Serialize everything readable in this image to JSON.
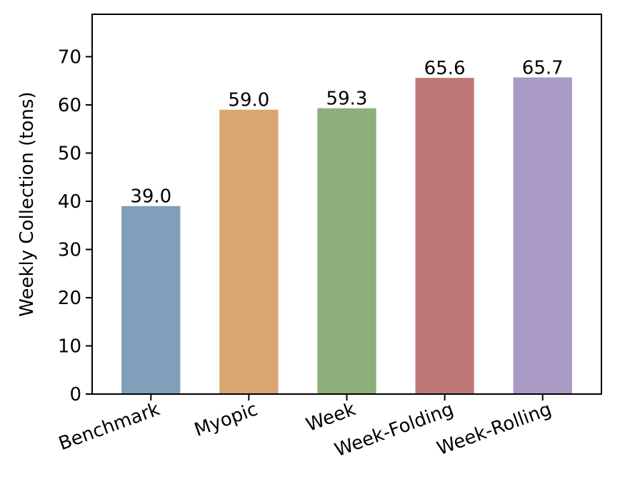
{
  "chart_data": {
    "type": "bar",
    "title": "",
    "xlabel": "",
    "ylabel": "Weekly Collection (tons)",
    "categories": [
      "Benchmark",
      "Myopic",
      "Week",
      "Week-Folding",
      "Week-Rolling"
    ],
    "values": [
      39.0,
      59.0,
      59.3,
      65.6,
      65.7
    ],
    "value_labels": [
      "39.0",
      "59.0",
      "59.3",
      "65.6",
      "65.7"
    ],
    "colors": [
      "#819eba",
      "#d9a571",
      "#8daf79",
      "#bf7877",
      "#aa9ac6"
    ],
    "ylim": [
      0,
      78.8
    ],
    "yticks": [
      0,
      10,
      20,
      30,
      40,
      50,
      60,
      70
    ],
    "grid": false,
    "legend": "none"
  }
}
